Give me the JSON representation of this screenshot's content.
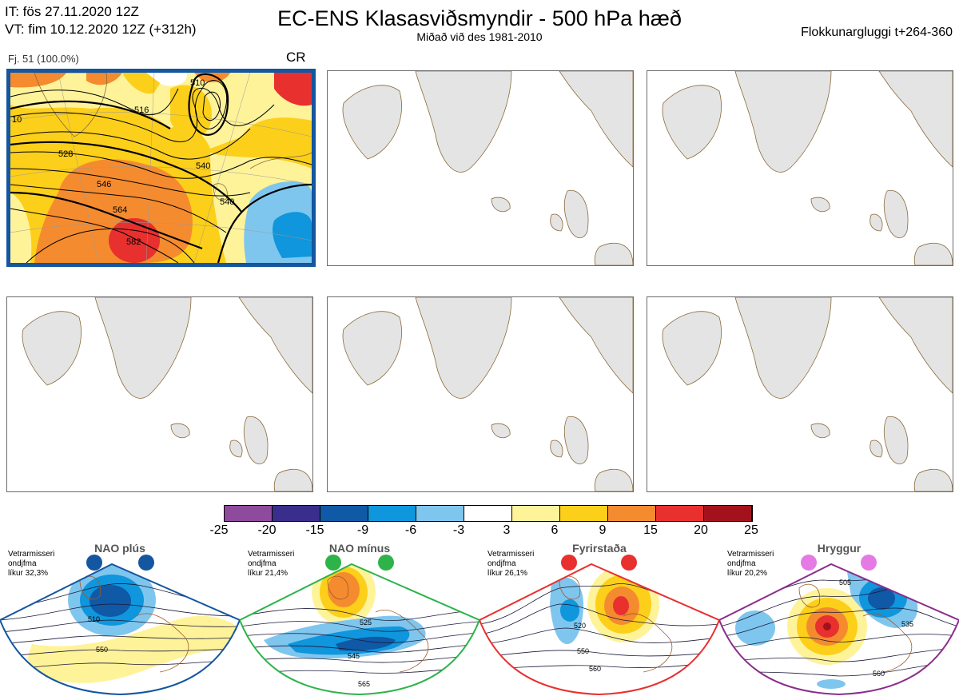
{
  "header": {
    "it_line": "IT: fös 27.11.2020 12Z",
    "vt_line": "VT: fim 10.12.2020 12Z  (+312h)",
    "title": "EC-ENS Klasasviðsmyndir - 500 hPa hæð",
    "subtitle": "Miðað við des 1981-2010",
    "window": "Flokkunargluggi t+264-360"
  },
  "cluster": {
    "label": "Fj. 51 (100.0%)",
    "regime_code": "CR",
    "contours": [
      "510",
      "516",
      "528",
      "540",
      "546",
      "564",
      "582",
      "540",
      "10"
    ]
  },
  "colorbar": {
    "ticks": [
      "-25",
      "-20",
      "-15",
      "-9",
      "-6",
      "-3",
      "3",
      "6",
      "9",
      "15",
      "20",
      "25"
    ],
    "colors": [
      "#8e4a9c",
      "#3b2d8c",
      "#0f59a6",
      "#0f96dc",
      "#7fc6ee",
      "#ffffff",
      "#fff39a",
      "#fccf1a",
      "#f58b2f",
      "#e8302f",
      "#a3121c"
    ]
  },
  "regimes": [
    {
      "name": "NAO plús",
      "season": "Vetrarmisseri",
      "mean": "ondjfma",
      "prob": "líkur 32,3%",
      "color": "#1456a0",
      "dot": "#1456a0",
      "labels": [
        "510",
        "550"
      ]
    },
    {
      "name": "NAO mínus",
      "season": "Vetrarmisseri",
      "mean": "ondjfma",
      "prob": "líkur 21,4%",
      "color": "#2db34a",
      "dot": "#2db34a",
      "labels": [
        "525",
        "545",
        "565"
      ]
    },
    {
      "name": "Fyrirstaða",
      "season": "Vetrarmisseri",
      "mean": "ondjfma",
      "prob": "líkur 26,1%",
      "color": "#e8302f",
      "dot": "#e8302f",
      "labels": [
        "520",
        "550",
        "560"
      ]
    },
    {
      "name": "Hryggur",
      "season": "Vetrarmisseri",
      "mean": "ondjfma",
      "prob": "líkur 20,2%",
      "color": "#8a2e8c",
      "dot": "#e57ae5",
      "labels": [
        "505",
        "535",
        "560"
      ]
    }
  ]
}
